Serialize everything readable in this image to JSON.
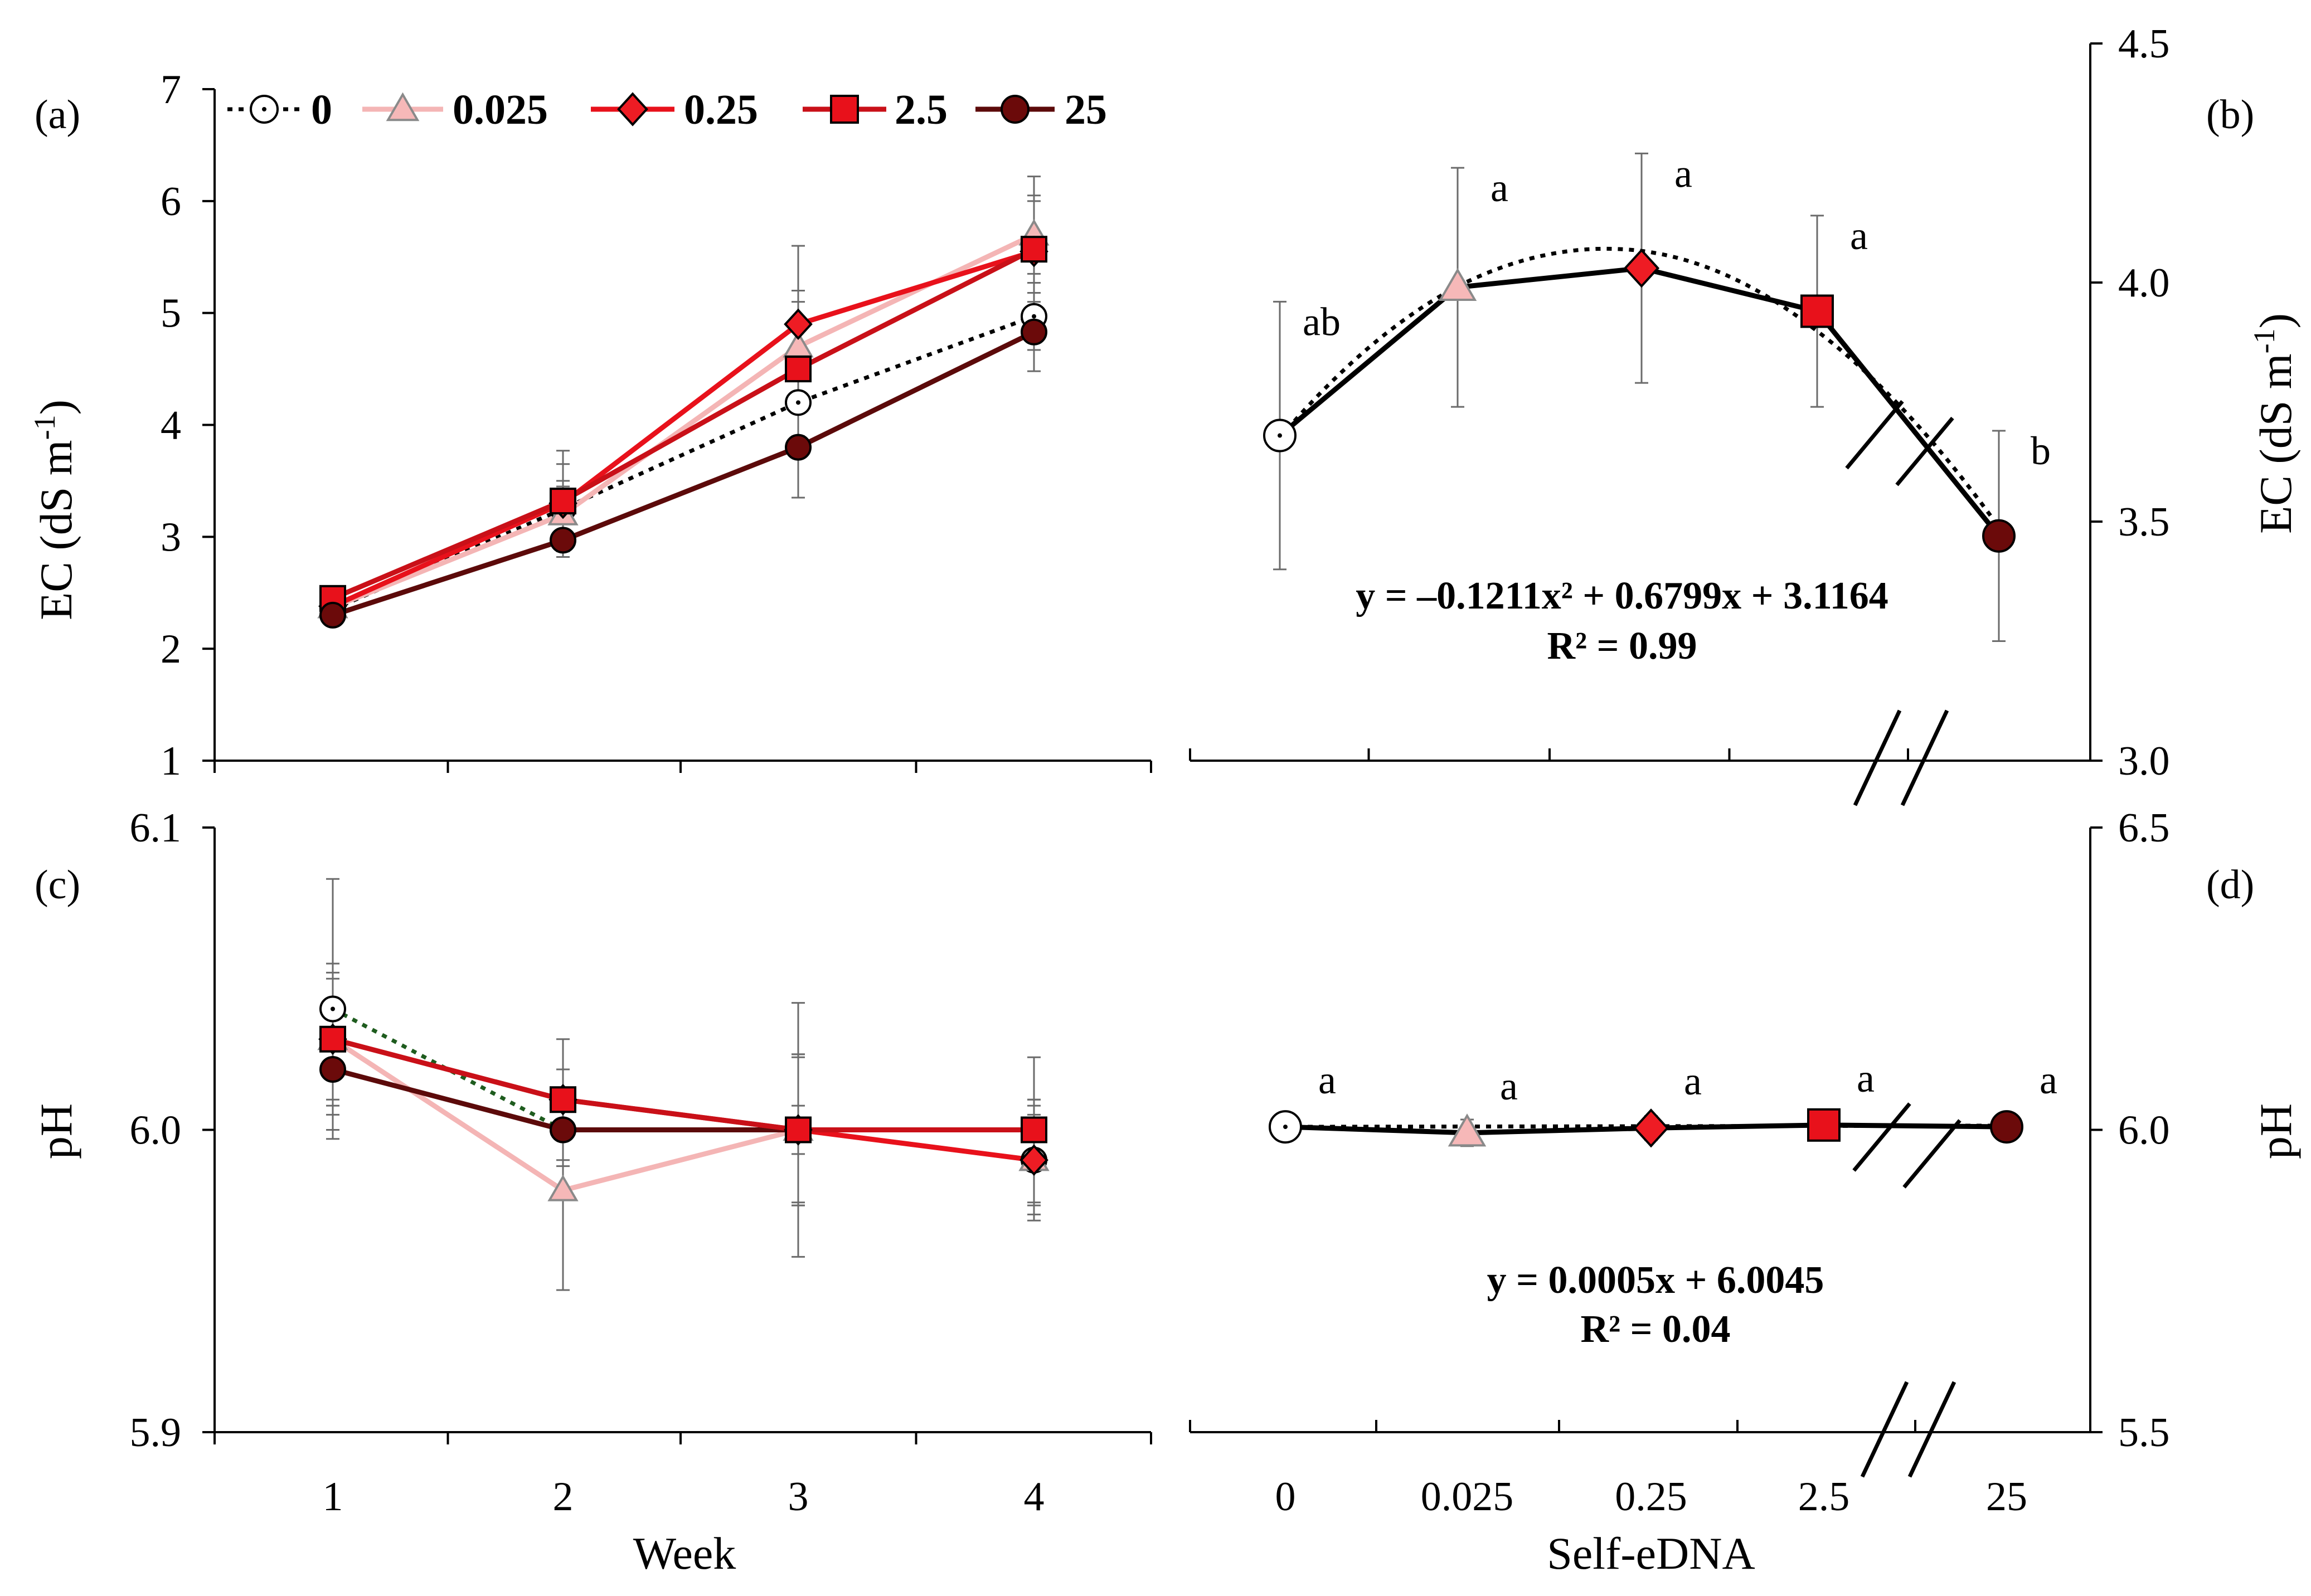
{
  "panel_labels": {
    "a": "(a)",
    "b": "(b)",
    "c": "(c)",
    "d": "(d)"
  },
  "legend": [
    {
      "key": "s0",
      "label": "0"
    },
    {
      "key": "s0025",
      "label": "0.025"
    },
    {
      "key": "s025",
      "label": "0.25"
    },
    {
      "key": "s25",
      "label": "2.5"
    },
    {
      "key": "s250",
      "label": "25"
    }
  ],
  "colors": {
    "s0": "#000000",
    "s0025": "#f4b5b5",
    "s025": "#e8111b",
    "s25": "#c91018",
    "s250": "#5c0a0a",
    "s0_fill": "#ffffff",
    "s0025_fill": "#f6b8b8",
    "s025_fill": "#ee1c24",
    "s25_fill": "#e8111b",
    "s250_fill": "#6b0a0a",
    "error": "#6b6b6b",
    "ph_trend": "#1e5c1e"
  },
  "chart_data": [
    {
      "id": "a",
      "type": "line",
      "xlabel": "Week",
      "ylabel": "EC (dS m",
      "ylabel_sup": "-1",
      "ylabel_end": ")",
      "x": [
        1,
        2,
        3,
        4
      ],
      "x_tick_labels": [
        "1",
        "2",
        "3",
        "4"
      ],
      "ylim": [
        1,
        7
      ],
      "y_ticks": [
        1,
        2,
        3,
        4,
        5,
        6,
        7
      ],
      "y_tick_labels": [
        "1",
        "2",
        "3",
        "4",
        "5",
        "6",
        "7"
      ],
      "series": [
        {
          "key": "s0",
          "name": "0",
          "values": [
            2.35,
            3.25,
            4.2,
            4.97
          ],
          "err": [
            0.08,
            0.25,
            0.45,
            0.3
          ]
        },
        {
          "key": "s0025",
          "name": "0.025",
          "values": [
            2.37,
            3.2,
            4.7,
            5.7
          ],
          "err": [
            0.08,
            0.25,
            0.5,
            0.35
          ]
        },
        {
          "key": "s025",
          "name": "0.25",
          "values": [
            2.38,
            3.3,
            4.9,
            5.55
          ],
          "err": [
            0.08,
            0.35,
            0.7,
            0.45
          ]
        },
        {
          "key": "s25",
          "name": "2.5",
          "values": [
            2.45,
            3.32,
            4.5,
            5.57
          ],
          "err": [
            0.08,
            0.45,
            0.6,
            0.65
          ]
        },
        {
          "key": "s250",
          "name": "25",
          "values": [
            2.3,
            2.97,
            3.8,
            4.83
          ],
          "err": [
            0.05,
            0.15,
            0.45,
            0.35
          ]
        }
      ]
    },
    {
      "id": "b",
      "type": "line",
      "xlabel": "",
      "ylabel": "EC (dS m",
      "ylabel_sup": "-1",
      "ylabel_end": ")",
      "x_categories": [
        "0",
        "0.025",
        "0.25",
        "2.5",
        "25"
      ],
      "ylim": [
        3.0,
        4.5
      ],
      "y_ticks": [
        3.0,
        3.5,
        4.0,
        4.5
      ],
      "y_tick_labels": [
        "3.0",
        "3.5",
        "4.0",
        "4.5"
      ],
      "axis_break": true,
      "points": [
        {
          "key": "s0",
          "x": "0",
          "value": 3.68,
          "err": 0.28,
          "letter": "ab"
        },
        {
          "key": "s0025",
          "x": "0.025",
          "value": 3.99,
          "err": 0.25,
          "letter": "a"
        },
        {
          "key": "s025",
          "x": "0.25",
          "value": 4.03,
          "err": 0.24,
          "letter": "a"
        },
        {
          "key": "s25",
          "x": "2.5",
          "value": 3.94,
          "err": 0.2,
          "letter": "a"
        },
        {
          "key": "s250",
          "x": "25",
          "value": 3.47,
          "err": 0.22,
          "letter": "b"
        }
      ],
      "fit": {
        "kind": "quadratic",
        "a": -0.1211,
        "b": 0.6799,
        "c": 3.1164
      },
      "equation": "y = –0.1211x² + 0.6799x + 3.1164",
      "r2": "R² = 0.99"
    },
    {
      "id": "c",
      "type": "line",
      "xlabel": "Week",
      "ylabel": "pH",
      "x": [
        1,
        2,
        3,
        4
      ],
      "x_tick_labels": [
        "1",
        "2",
        "3",
        "4"
      ],
      "ylim": [
        5.9,
        6.1
      ],
      "y_ticks": [
        5.9,
        6.0,
        6.1
      ],
      "y_tick_labels": [
        "5.9",
        "6.0",
        "6.1"
      ],
      "series": [
        {
          "key": "s0",
          "name": "0",
          "values": [
            6.04,
            6.0,
            6.0,
            5.99
          ],
          "err": [
            0.043,
            0.02,
            0.042,
            0.018
          ]
        },
        {
          "key": "s0025",
          "name": "0.025",
          "values": [
            6.03,
            5.98,
            6.0,
            5.99
          ],
          "err": [
            0.025,
            0.033,
            0.025,
            0.02
          ]
        },
        {
          "key": "s025",
          "name": "0.25",
          "values": [
            6.03,
            6.01,
            6.0,
            5.99
          ],
          "err": [
            0.02,
            0.01,
            0.025,
            0.015
          ]
        },
        {
          "key": "s25",
          "name": "2.5",
          "values": [
            6.03,
            6.01,
            6.0,
            6.0
          ],
          "err": [
            0.022,
            0.02,
            0.024,
            0.024
          ]
        },
        {
          "key": "s250",
          "name": "25",
          "values": [
            6.02,
            6.0,
            6.0,
            6.0
          ],
          "err": [
            0.02,
            0.012,
            0.008,
            0.01
          ]
        }
      ]
    },
    {
      "id": "d",
      "type": "line",
      "xlabel": "Self-eDNA",
      "ylabel": "pH",
      "x_categories": [
        "0",
        "0.025",
        "0.25",
        "2.5",
        "25"
      ],
      "ylim": [
        5.5,
        6.5
      ],
      "y_ticks": [
        5.5,
        6.0,
        6.5
      ],
      "y_tick_labels": [
        "5.5",
        "6.0",
        "6.5"
      ],
      "axis_break": true,
      "points": [
        {
          "key": "s0",
          "x": "0",
          "value": 6.005,
          "err": 0.022,
          "letter": "a"
        },
        {
          "key": "s0025",
          "x": "0.025",
          "value": 5.995,
          "err": 0.022,
          "letter": "a"
        },
        {
          "key": "s025",
          "x": "0.25",
          "value": 6.003,
          "err": 0.02,
          "letter": "a"
        },
        {
          "key": "s25",
          "x": "2.5",
          "value": 6.008,
          "err": 0.02,
          "letter": "a"
        },
        {
          "key": "s250",
          "x": "25",
          "value": 6.005,
          "err": 0.022,
          "letter": "a"
        }
      ],
      "fit": {
        "kind": "linear",
        "a": 0.0005,
        "b": 6.0045
      },
      "equation": "y = 0.0005x + 6.0045",
      "r2": "R² = 0.04"
    }
  ]
}
